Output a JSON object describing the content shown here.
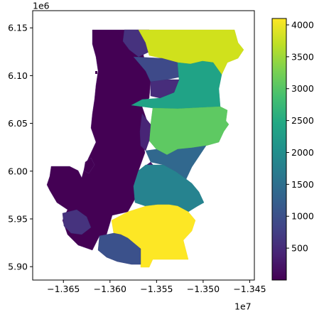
{
  "chart_data": {
    "type": "choropleth",
    "title": "",
    "xlabel": "",
    "ylabel": "",
    "x_offset_label": "1e7",
    "y_offset_label": "1e6",
    "xlim": [
      -1.3683,
      -1.3445
    ],
    "ylim": [
      5.886,
      6.168
    ],
    "x_ticks": [
      -1.365,
      -1.36,
      -1.355,
      -1.35,
      -1.345
    ],
    "x_tick_labels": [
      "−1.365",
      "−1.360",
      "−1.355",
      "−1.350",
      "−1.345"
    ],
    "y_ticks": [
      5.9,
      5.95,
      6.0,
      6.05,
      6.1,
      6.15
    ],
    "y_tick_labels": [
      "5.90",
      "5.95",
      "6.00",
      "6.05",
      "6.10",
      "6.15"
    ],
    "grid": false,
    "colormap": "viridis",
    "colorbar": {
      "range": [
        0,
        4100
      ],
      "ticks": [
        500,
        1000,
        1500,
        2000,
        2500,
        3000,
        3500,
        4000
      ],
      "tick_labels": [
        "500",
        "1000",
        "1500",
        "2000",
        "2500",
        "3000",
        "3500",
        "4000"
      ]
    },
    "regions": [
      {
        "value": 3700
      },
      {
        "value": 1000
      },
      {
        "value": 700
      },
      {
        "value": 2300
      },
      {
        "value": 2700
      },
      {
        "value": 1200
      },
      {
        "value": 2000
      },
      {
        "value": 4100
      },
      {
        "value": 1100
      },
      {
        "value": 800
      },
      {
        "value": 30
      }
    ]
  }
}
